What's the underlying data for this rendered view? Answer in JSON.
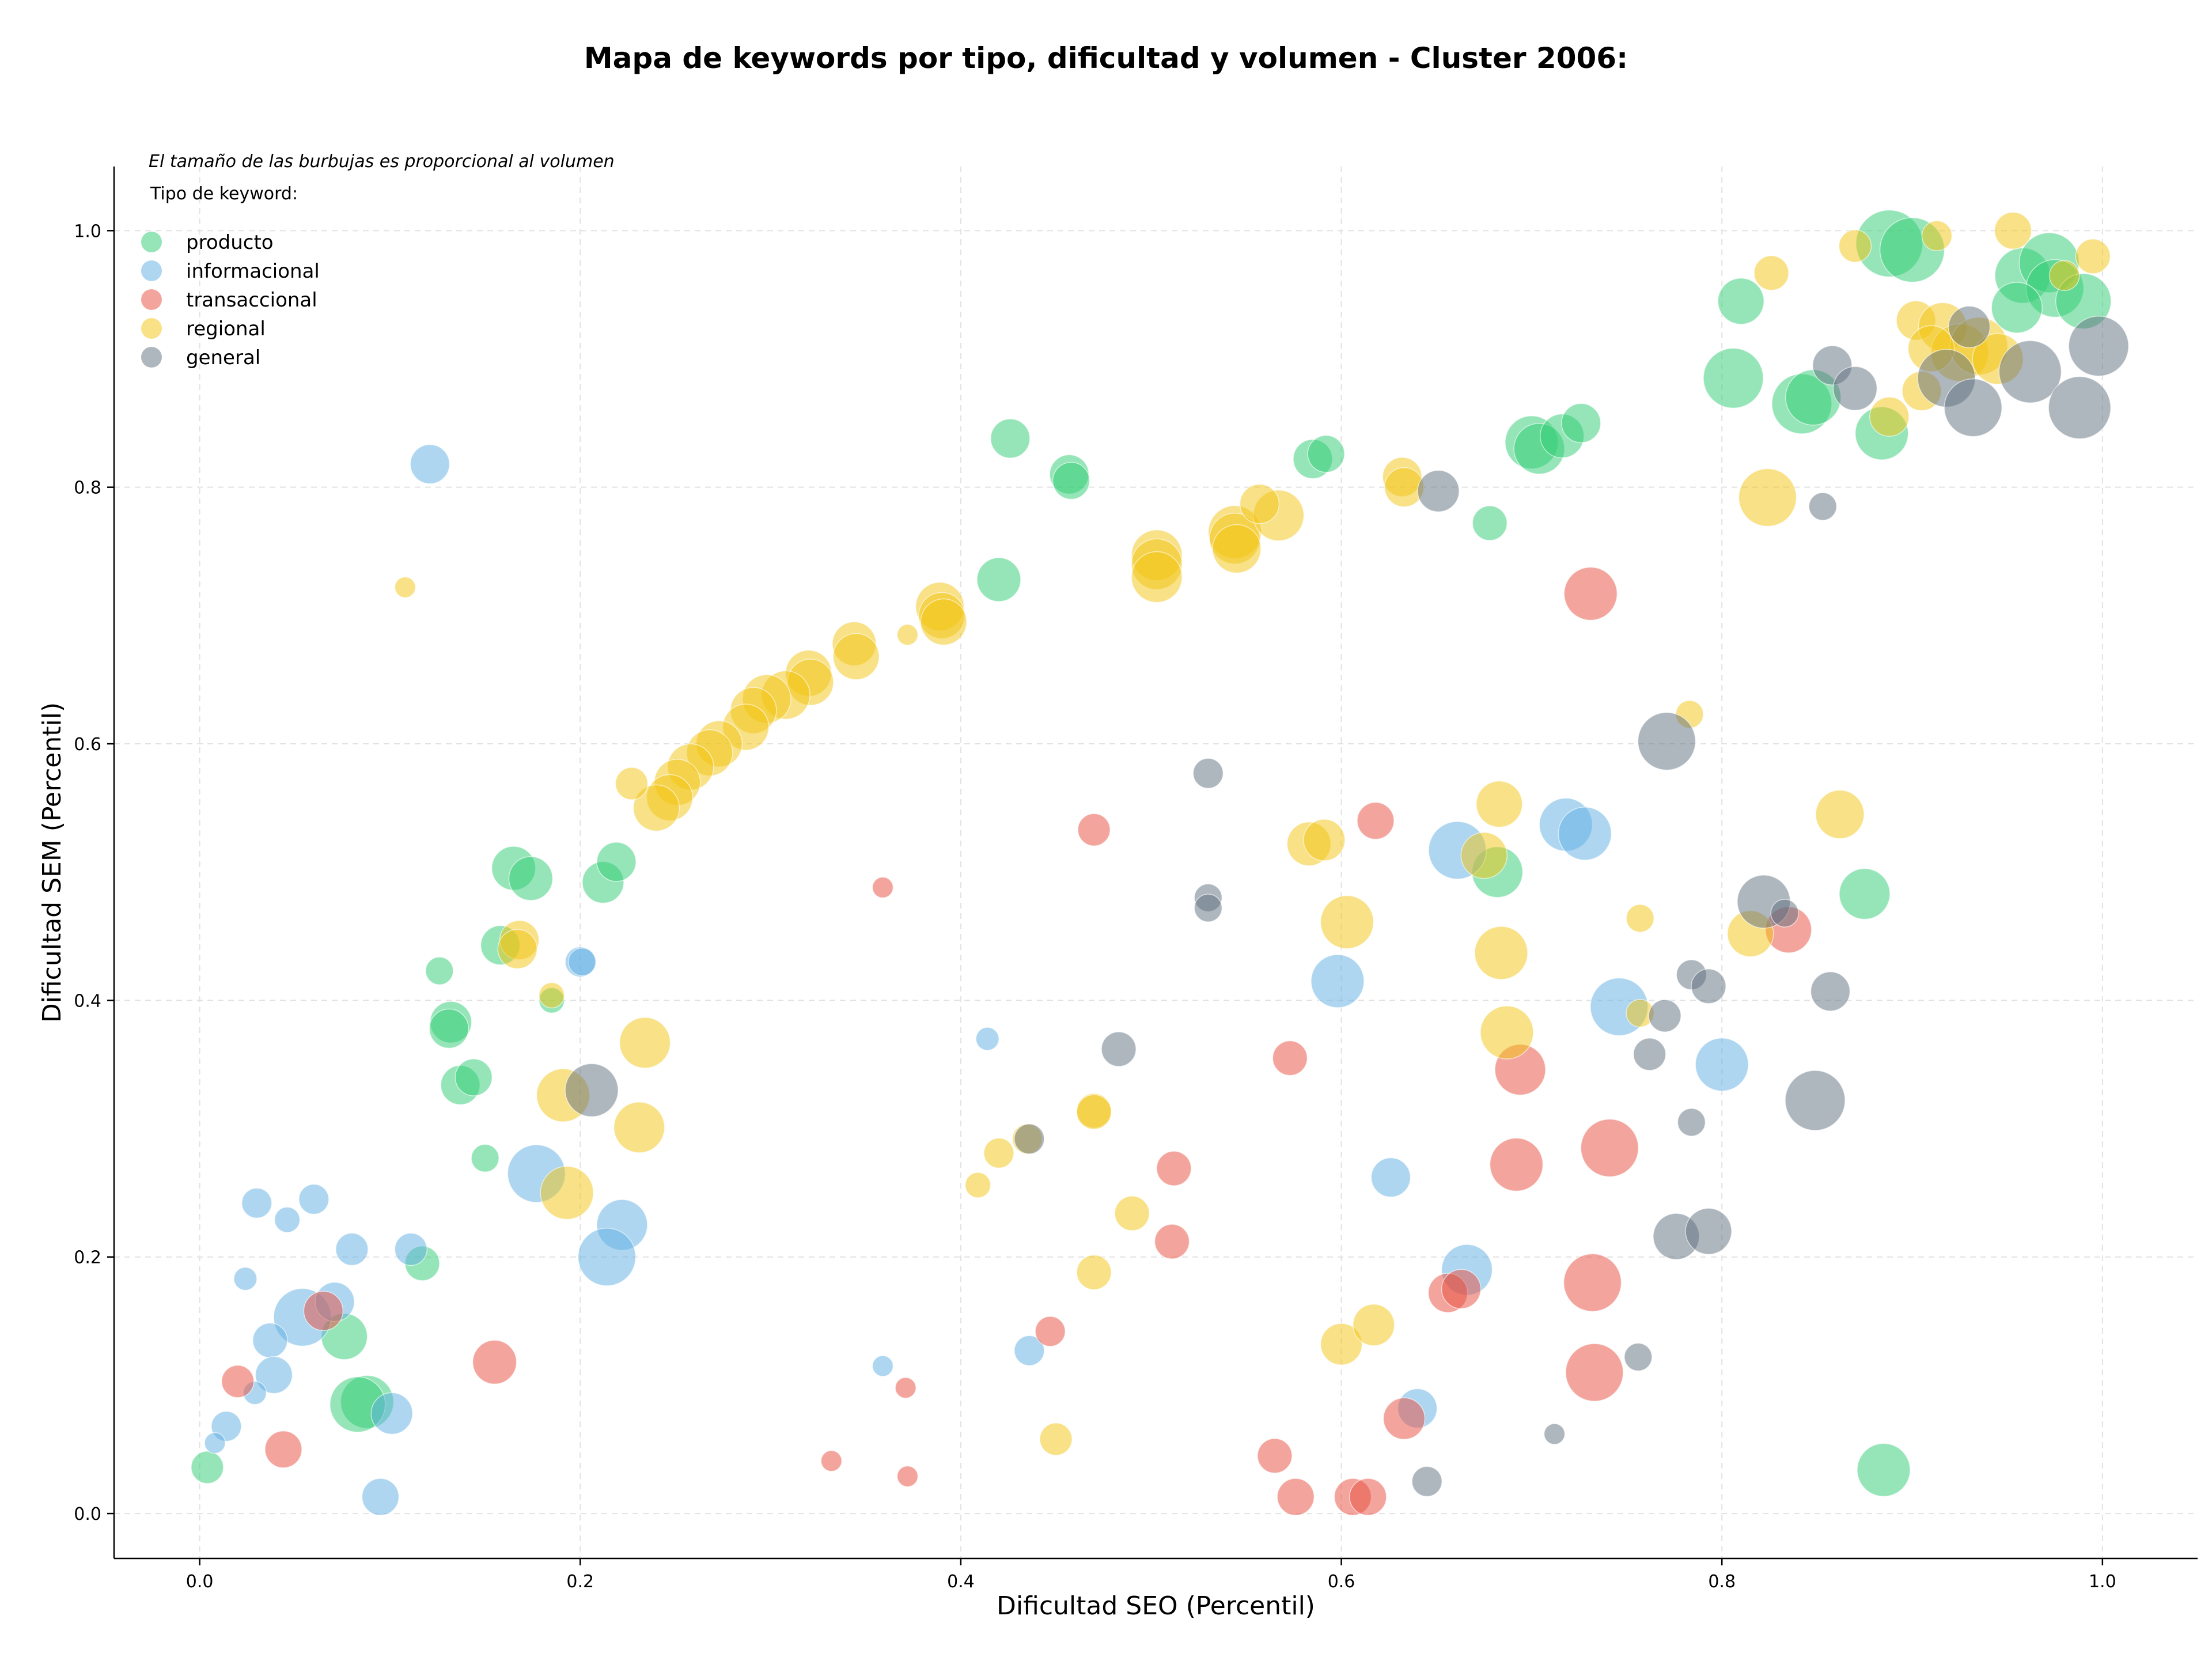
{
  "chart_data": {
    "type": "scatter",
    "title": "Mapa de keywords por tipo, dificultad y volumen - Cluster 2006:",
    "xlabel": "Dificultad SEO (Percentil)",
    "ylabel": "Dificultad SEM (Percentil)",
    "note": "El tamaño de las burbujas es proporcional al volumen",
    "legend_title": "Tipo de keyword:",
    "legend_position": "top-left",
    "grid": true,
    "xlim": [
      -0.045,
      1.05
    ],
    "ylim": [
      -0.035,
      1.05
    ],
    "xticks": [
      "0.0",
      "0.2",
      "0.4",
      "0.6",
      "0.8",
      "1.0"
    ],
    "yticks": [
      "0.0",
      "0.2",
      "0.4",
      "0.6",
      "0.8",
      "1.0"
    ],
    "series": [
      {
        "name": "producto",
        "color": "#2ecc71",
        "points": [
          [
            0.888,
            0.99,
            58
          ],
          [
            0.9,
            0.985,
            56
          ],
          [
            0.958,
            0.965,
            48
          ],
          [
            0.972,
            0.975,
            52
          ],
          [
            0.975,
            0.955,
            50
          ],
          [
            0.99,
            0.945,
            48
          ],
          [
            0.955,
            0.94,
            44
          ],
          [
            0.81,
            0.945,
            40
          ],
          [
            0.806,
            0.885,
            52
          ],
          [
            0.842,
            0.865,
            52
          ],
          [
            0.848,
            0.87,
            48
          ],
          [
            0.884,
            0.842,
            46
          ],
          [
            0.7,
            0.835,
            46
          ],
          [
            0.704,
            0.83,
            44
          ],
          [
            0.716,
            0.84,
            38
          ],
          [
            0.726,
            0.85,
            34
          ],
          [
            0.585,
            0.822,
            34
          ],
          [
            0.592,
            0.826,
            32
          ],
          [
            0.426,
            0.838,
            34
          ],
          [
            0.457,
            0.81,
            34
          ],
          [
            0.458,
            0.805,
            32
          ],
          [
            0.678,
            0.772,
            30
          ],
          [
            0.42,
            0.728,
            38
          ],
          [
            0.682,
            0.5,
            44
          ],
          [
            0.875,
            0.483,
            44
          ],
          [
            0.165,
            0.503,
            38
          ],
          [
            0.174,
            0.495,
            38
          ],
          [
            0.212,
            0.492,
            36
          ],
          [
            0.219,
            0.508,
            34
          ],
          [
            0.158,
            0.443,
            34
          ],
          [
            0.126,
            0.423,
            24
          ],
          [
            0.185,
            0.4,
            22
          ],
          [
            0.132,
            0.383,
            36
          ],
          [
            0.131,
            0.378,
            34
          ],
          [
            0.137,
            0.334,
            34
          ],
          [
            0.144,
            0.34,
            32
          ],
          [
            0.15,
            0.277,
            24
          ],
          [
            0.117,
            0.195,
            30
          ],
          [
            0.076,
            0.138,
            40
          ],
          [
            0.088,
            0.087,
            46
          ],
          [
            0.083,
            0.085,
            48
          ],
          [
            0.004,
            0.036,
            28
          ],
          [
            0.885,
            0.034,
            46
          ]
        ]
      },
      {
        "name": "informacional",
        "color": "#5dade2",
        "points": [
          [
            0.121,
            0.818,
            34
          ],
          [
            0.2,
            0.43,
            26
          ],
          [
            0.201,
            0.43,
            24
          ],
          [
            0.177,
            0.265,
            50
          ],
          [
            0.222,
            0.225,
            44
          ],
          [
            0.214,
            0.2,
            50
          ],
          [
            0.661,
            0.517,
            50
          ],
          [
            0.718,
            0.537,
            46
          ],
          [
            0.728,
            0.53,
            46
          ],
          [
            0.598,
            0.415,
            46
          ],
          [
            0.746,
            0.395,
            50
          ],
          [
            0.8,
            0.35,
            46
          ],
          [
            0.626,
            0.262,
            34
          ],
          [
            0.666,
            0.19,
            44
          ],
          [
            0.64,
            0.082,
            34
          ],
          [
            0.436,
            0.127,
            26
          ],
          [
            0.414,
            0.37,
            20
          ],
          [
            0.359,
            0.115,
            18
          ],
          [
            0.03,
            0.242,
            26
          ],
          [
            0.06,
            0.245,
            26
          ],
          [
            0.046,
            0.229,
            22
          ],
          [
            0.08,
            0.206,
            28
          ],
          [
            0.111,
            0.206,
            28
          ],
          [
            0.024,
            0.183,
            20
          ],
          [
            0.054,
            0.153,
            50
          ],
          [
            0.071,
            0.165,
            34
          ],
          [
            0.037,
            0.135,
            30
          ],
          [
            0.039,
            0.108,
            32
          ],
          [
            0.029,
            0.094,
            20
          ],
          [
            0.014,
            0.068,
            26
          ],
          [
            0.008,
            0.055,
            18
          ],
          [
            0.101,
            0.078,
            36
          ],
          [
            0.095,
            0.013,
            32
          ]
        ]
      },
      {
        "name": "transaccional",
        "color": "#e74c3c",
        "points": [
          [
            0.731,
            0.717,
            46
          ],
          [
            0.47,
            0.533,
            28
          ],
          [
            0.618,
            0.54,
            32
          ],
          [
            0.359,
            0.488,
            18
          ],
          [
            0.835,
            0.455,
            40
          ],
          [
            0.694,
            0.346,
            44
          ],
          [
            0.573,
            0.355,
            30
          ],
          [
            0.741,
            0.285,
            50
          ],
          [
            0.732,
            0.18,
            50
          ],
          [
            0.733,
            0.11,
            50
          ],
          [
            0.512,
            0.269,
            30
          ],
          [
            0.511,
            0.212,
            30
          ],
          [
            0.692,
            0.272,
            46
          ],
          [
            0.656,
            0.172,
            34
          ],
          [
            0.663,
            0.175,
            34
          ],
          [
            0.447,
            0.142,
            26
          ],
          [
            0.371,
            0.098,
            18
          ],
          [
            0.633,
            0.074,
            36
          ],
          [
            0.565,
            0.045,
            30
          ],
          [
            0.576,
            0.013,
            32
          ],
          [
            0.606,
            0.013,
            32
          ],
          [
            0.614,
            0.013,
            32
          ],
          [
            0.332,
            0.041,
            18
          ],
          [
            0.372,
            0.029,
            18
          ],
          [
            0.065,
            0.158,
            34
          ],
          [
            0.155,
            0.118,
            38
          ],
          [
            0.02,
            0.103,
            28
          ],
          [
            0.044,
            0.05,
            32
          ]
        ]
      },
      {
        "name": "regional",
        "color": "#f1c40f",
        "points": [
          [
            0.108,
            0.722,
            18
          ],
          [
            0.372,
            0.685,
            18
          ],
          [
            0.389,
            0.707,
            42
          ],
          [
            0.39,
            0.7,
            40
          ],
          [
            0.391,
            0.695,
            40
          ],
          [
            0.344,
            0.678,
            38
          ],
          [
            0.345,
            0.668,
            40
          ],
          [
            0.32,
            0.655,
            40
          ],
          [
            0.321,
            0.648,
            40
          ],
          [
            0.308,
            0.638,
            42
          ],
          [
            0.298,
            0.635,
            42
          ],
          [
            0.291,
            0.626,
            40
          ],
          [
            0.287,
            0.613,
            40
          ],
          [
            0.273,
            0.6,
            40
          ],
          [
            0.268,
            0.593,
            40
          ],
          [
            0.258,
            0.582,
            40
          ],
          [
            0.251,
            0.57,
            40
          ],
          [
            0.247,
            0.558,
            40
          ],
          [
            0.24,
            0.55,
            40
          ],
          [
            0.227,
            0.569,
            28
          ],
          [
            0.168,
            0.447,
            34
          ],
          [
            0.167,
            0.44,
            34
          ],
          [
            0.185,
            0.404,
            22
          ],
          [
            0.234,
            0.367,
            44
          ],
          [
            0.231,
            0.301,
            44
          ],
          [
            0.191,
            0.326,
            46
          ],
          [
            0.193,
            0.25,
            46
          ],
          [
            0.503,
            0.747,
            44
          ],
          [
            0.503,
            0.74,
            44
          ],
          [
            0.503,
            0.73,
            44
          ],
          [
            0.544,
            0.765,
            46
          ],
          [
            0.544,
            0.76,
            44
          ],
          [
            0.545,
            0.752,
            42
          ],
          [
            0.567,
            0.778,
            44
          ],
          [
            0.557,
            0.787,
            34
          ],
          [
            0.632,
            0.808,
            34
          ],
          [
            0.633,
            0.8,
            34
          ],
          [
            0.824,
            0.792,
            50
          ],
          [
            0.583,
            0.522,
            38
          ],
          [
            0.591,
            0.525,
            36
          ],
          [
            0.603,
            0.461,
            46
          ],
          [
            0.683,
            0.553,
            40
          ],
          [
            0.675,
            0.513,
            40
          ],
          [
            0.684,
            0.437,
            46
          ],
          [
            0.687,
            0.375,
            46
          ],
          [
            0.757,
            0.464,
            24
          ],
          [
            0.757,
            0.39,
            24
          ],
          [
            0.783,
            0.623,
            24
          ],
          [
            0.862,
            0.545,
            42
          ],
          [
            0.815,
            0.452,
            40
          ],
          [
            0.409,
            0.256,
            22
          ],
          [
            0.42,
            0.281,
            26
          ],
          [
            0.435,
            0.292,
            26
          ],
          [
            0.47,
            0.314,
            30
          ],
          [
            0.47,
            0.313,
            30
          ],
          [
            0.49,
            0.234,
            30
          ],
          [
            0.47,
            0.188,
            30
          ],
          [
            0.45,
            0.058,
            28
          ],
          [
            0.6,
            0.132,
            36
          ],
          [
            0.617,
            0.147,
            36
          ],
          [
            0.826,
            0.967,
            30
          ],
          [
            0.87,
            0.988,
            28
          ],
          [
            0.913,
            0.996,
            26
          ],
          [
            0.953,
            1.0,
            32
          ],
          [
            0.995,
            0.98,
            30
          ],
          [
            0.98,
            0.965,
            26
          ],
          [
            0.902,
            0.93,
            34
          ],
          [
            0.916,
            0.925,
            42
          ],
          [
            0.925,
            0.905,
            50
          ],
          [
            0.935,
            0.91,
            50
          ],
          [
            0.945,
            0.9,
            44
          ],
          [
            0.91,
            0.908,
            40
          ],
          [
            0.905,
            0.875,
            34
          ],
          [
            0.888,
            0.855,
            34
          ]
        ]
      },
      {
        "name": "general",
        "color": "#5d6d7e",
        "points": [
          [
            0.206,
            0.33,
            46
          ],
          [
            0.436,
            0.292,
            26
          ],
          [
            0.483,
            0.362,
            30
          ],
          [
            0.53,
            0.577,
            26
          ],
          [
            0.53,
            0.48,
            24
          ],
          [
            0.53,
            0.472,
            24
          ],
          [
            0.651,
            0.797,
            36
          ],
          [
            0.771,
            0.602,
            50
          ],
          [
            0.822,
            0.477,
            46
          ],
          [
            0.833,
            0.468,
            24
          ],
          [
            0.857,
            0.407,
            34
          ],
          [
            0.784,
            0.42,
            26
          ],
          [
            0.793,
            0.411,
            30
          ],
          [
            0.77,
            0.388,
            28
          ],
          [
            0.762,
            0.358,
            28
          ],
          [
            0.784,
            0.305,
            24
          ],
          [
            0.849,
            0.322,
            52
          ],
          [
            0.776,
            0.216,
            40
          ],
          [
            0.793,
            0.22,
            40
          ],
          [
            0.756,
            0.122,
            24
          ],
          [
            0.712,
            0.062,
            18
          ],
          [
            0.645,
            0.025,
            26
          ],
          [
            0.853,
            0.785,
            24
          ],
          [
            0.858,
            0.895,
            34
          ],
          [
            0.87,
            0.877,
            38
          ],
          [
            0.93,
            0.925,
            36
          ],
          [
            0.918,
            0.885,
            50
          ],
          [
            0.932,
            0.862,
            50
          ],
          [
            0.962,
            0.89,
            54
          ],
          [
            0.988,
            0.862,
            54
          ],
          [
            0.998,
            0.91,
            52
          ]
        ]
      }
    ]
  }
}
